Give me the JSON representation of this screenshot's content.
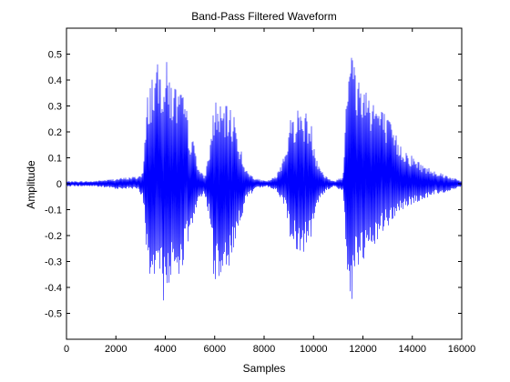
{
  "chart_data": {
    "type": "line",
    "title": "Band-Pass Filtered Waveform",
    "xlabel": "Samples",
    "ylabel": "Amplitude",
    "xlim": [
      0,
      16000
    ],
    "ylim": [
      -0.6,
      0.6
    ],
    "xticks": [
      0,
      2000,
      4000,
      6000,
      8000,
      10000,
      12000,
      14000,
      16000
    ],
    "xtick_labels": [
      "0",
      "2000",
      "4000",
      "6000",
      "8000",
      "10000",
      "12000",
      "14000",
      "16000"
    ],
    "yticks": [
      -0.5,
      -0.4,
      -0.3,
      -0.2,
      -0.1,
      0,
      0.1,
      0.2,
      0.3,
      0.4,
      0.5
    ],
    "ytick_labels": [
      "-0.5",
      "-0.4",
      "-0.3",
      "-0.2",
      "-0.1",
      "0",
      "0.1",
      "0.2",
      "0.3",
      "0.4",
      "0.5"
    ],
    "grid": false,
    "series": [
      {
        "color": "#0000ff",
        "envelope_x": [
          0,
          1000,
          2000,
          2900,
          3100,
          3300,
          3500,
          3800,
          4000,
          4300,
          4500,
          4800,
          5000,
          5200,
          5400,
          5600,
          5800,
          6000,
          6200,
          6500,
          6800,
          7000,
          7300,
          7700,
          8100,
          8500,
          8800,
          9100,
          9400,
          9700,
          9900,
          10100,
          10400,
          10800,
          11200,
          11350,
          11500,
          11700,
          12000,
          12300,
          12600,
          13000,
          13500,
          14000,
          14500,
          15000,
          15500,
          16000
        ],
        "envelope_upper": [
          0.01,
          0.01,
          0.02,
          0.03,
          0.05,
          0.38,
          0.45,
          0.47,
          0.49,
          0.4,
          0.38,
          0.33,
          0.2,
          0.15,
          0.05,
          0.03,
          0.15,
          0.34,
          0.3,
          0.3,
          0.28,
          0.16,
          0.05,
          0.02,
          0.01,
          0.03,
          0.12,
          0.27,
          0.3,
          0.28,
          0.24,
          0.12,
          0.04,
          0.01,
          0.03,
          0.5,
          0.58,
          0.45,
          0.41,
          0.37,
          0.32,
          0.26,
          0.16,
          0.11,
          0.07,
          0.05,
          0.03,
          0.01
        ],
        "envelope_lower": [
          -0.01,
          -0.01,
          -0.02,
          -0.02,
          -0.06,
          -0.37,
          -0.42,
          -0.44,
          -0.46,
          -0.38,
          -0.36,
          -0.3,
          -0.2,
          -0.14,
          -0.05,
          -0.05,
          -0.15,
          -0.42,
          -0.35,
          -0.33,
          -0.28,
          -0.16,
          -0.06,
          -0.02,
          -0.01,
          -0.03,
          -0.08,
          -0.23,
          -0.27,
          -0.26,
          -0.22,
          -0.1,
          -0.04,
          -0.01,
          -0.03,
          -0.42,
          -0.49,
          -0.36,
          -0.32,
          -0.3,
          -0.22,
          -0.17,
          -0.11,
          -0.08,
          -0.06,
          -0.04,
          -0.03,
          -0.01
        ]
      }
    ]
  }
}
